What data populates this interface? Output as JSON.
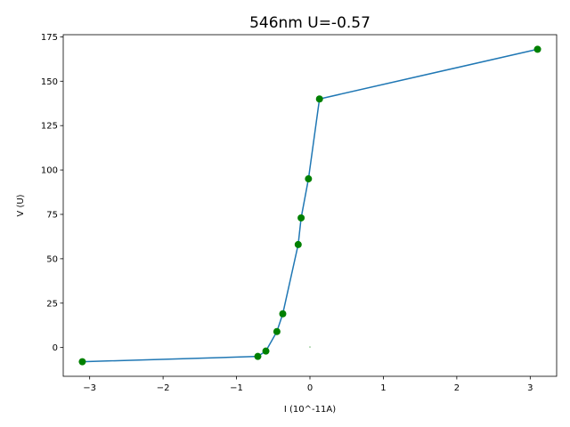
{
  "chart_data": {
    "type": "line",
    "title": "546nm    U=-0.57",
    "xlabel": "I (10^-11A)",
    "ylabel": "V (U)",
    "xlim": [
      -3.36,
      3.36
    ],
    "ylim": [
      -16.2,
      176.2
    ],
    "xticks": [
      -3,
      -2,
      -1,
      0,
      1,
      2,
      3
    ],
    "yticks": [
      0,
      25,
      50,
      75,
      100,
      125,
      150,
      175
    ],
    "xtick_labels": [
      "−3",
      "−2",
      "−1",
      "0",
      "1",
      "2",
      "3"
    ],
    "yticks_labels": [
      "0",
      "25",
      "50",
      "75",
      "100",
      "125",
      "150",
      "175"
    ],
    "grid": false,
    "series": [
      {
        "x": [
          -3.1,
          -0.71,
          -0.6,
          -0.45,
          -0.37,
          -0.16,
          -0.12,
          -0.02,
          0.13,
          3.1
        ],
        "y": [
          -8,
          -5,
          -2,
          9,
          19,
          58,
          73,
          95,
          140,
          168
        ],
        "line_color": "#1f77b4",
        "marker_color": "#008000"
      }
    ],
    "annotations": [
      {
        "x": 0.0,
        "y": 0.3,
        "text": "",
        "color": "#008000"
      }
    ]
  }
}
